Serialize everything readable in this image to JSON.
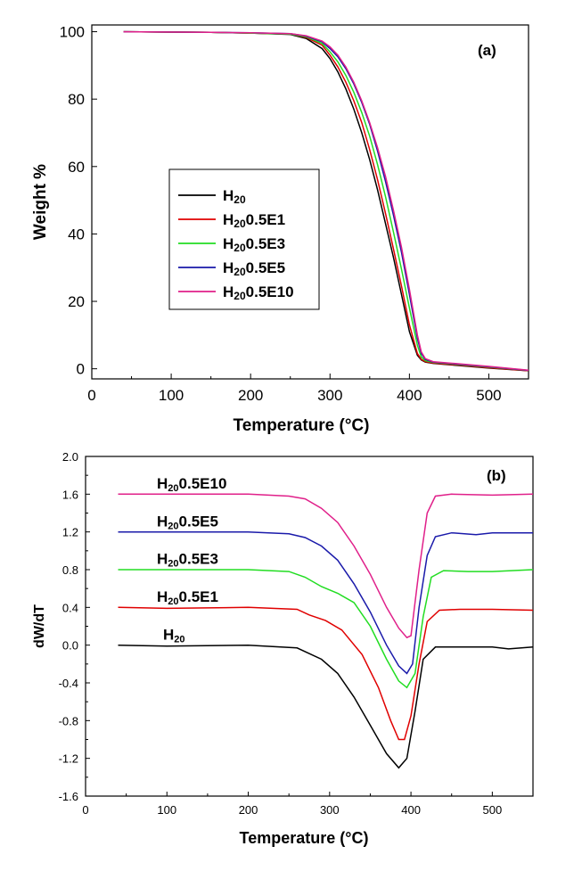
{
  "chart_data": [
    {
      "type": "line",
      "panel_label": "(a)",
      "xlabel": "Temperature (°C)",
      "ylabel": "Weight %",
      "xlim": [
        0,
        550
      ],
      "ylim": [
        -3,
        102
      ],
      "xticks": [
        0,
        100,
        200,
        300,
        400,
        500
      ],
      "yticks": [
        0,
        20,
        40,
        60,
        80,
        100
      ],
      "legend_position": "center-left",
      "grid": false,
      "series": [
        {
          "name": "H20",
          "color": "#000000",
          "x": [
            40,
            150,
            200,
            250,
            270,
            290,
            300,
            310,
            320,
            330,
            340,
            350,
            360,
            370,
            380,
            390,
            400,
            410,
            415,
            420,
            430,
            450,
            500,
            550
          ],
          "y": [
            100,
            99.8,
            99.6,
            99.2,
            98.0,
            95.0,
            92.0,
            88.0,
            83.0,
            77.0,
            70.0,
            62.0,
            53.0,
            43.0,
            33.0,
            22.0,
            11.0,
            4.0,
            2.6,
            2.0,
            1.6,
            1.2,
            0.2,
            -0.6
          ]
        },
        {
          "name": "H200.5E1",
          "color": "#e00000",
          "x": [
            40,
            150,
            200,
            250,
            270,
            290,
            300,
            310,
            320,
            330,
            340,
            350,
            360,
            370,
            380,
            390,
            400,
            410,
            415,
            420,
            430,
            450,
            500,
            550
          ],
          "y": [
            100,
            99.8,
            99.6,
            99.3,
            98.3,
            96.0,
            93.0,
            89.5,
            85.0,
            79.5,
            73.0,
            65.0,
            56.0,
            46.0,
            35.5,
            24.5,
            13.0,
            4.5,
            2.8,
            2.1,
            1.7,
            1.3,
            0.3,
            -0.6
          ]
        },
        {
          "name": "H200.5E3",
          "color": "#22dd22",
          "x": [
            40,
            150,
            200,
            250,
            270,
            290,
            300,
            310,
            320,
            330,
            340,
            350,
            360,
            370,
            380,
            390,
            400,
            410,
            415,
            420,
            430,
            450,
            500,
            550
          ],
          "y": [
            100,
            99.8,
            99.6,
            99.3,
            98.5,
            96.5,
            94.0,
            91.0,
            87.0,
            82.0,
            76.0,
            69.0,
            60.5,
            51.0,
            40.5,
            29.5,
            18.0,
            7.0,
            3.5,
            2.4,
            1.9,
            1.5,
            0.5,
            -0.5
          ]
        },
        {
          "name": "H200.5E5",
          "color": "#1a1aaa",
          "x": [
            40,
            150,
            200,
            250,
            270,
            290,
            300,
            310,
            320,
            330,
            340,
            350,
            360,
            370,
            380,
            390,
            400,
            410,
            415,
            420,
            430,
            450,
            500,
            550
          ],
          "y": [
            100,
            99.8,
            99.7,
            99.4,
            98.7,
            97.0,
            95.0,
            92.5,
            89.0,
            84.5,
            79.0,
            72.5,
            64.5,
            55.5,
            45.5,
            34.5,
            22.0,
            9.0,
            4.5,
            2.8,
            2.0,
            1.6,
            0.6,
            -0.5
          ]
        },
        {
          "name": "H200.5E10",
          "color": "#e0208a",
          "x": [
            40,
            150,
            200,
            250,
            270,
            290,
            300,
            310,
            320,
            330,
            340,
            350,
            360,
            370,
            380,
            390,
            400,
            410,
            415,
            420,
            430,
            450,
            500,
            550
          ],
          "y": [
            100,
            99.8,
            99.7,
            99.4,
            98.8,
            97.2,
            95.5,
            93.0,
            89.5,
            85.0,
            79.5,
            73.0,
            65.5,
            57.0,
            47.0,
            36.0,
            23.5,
            10.0,
            5.0,
            3.0,
            2.1,
            1.7,
            0.7,
            -0.4
          ]
        }
      ]
    },
    {
      "type": "line",
      "panel_label": "(b)",
      "xlabel": "Temperature (°C)",
      "ylabel": "dW/dT",
      "xlim": [
        0,
        550
      ],
      "ylim": [
        -1.6,
        2.0
      ],
      "xticks": [
        0,
        100,
        200,
        300,
        400,
        500
      ],
      "yticks": [
        -1.6,
        -1.2,
        -0.8,
        -0.4,
        0.0,
        0.4,
        0.8,
        1.2,
        1.6,
        2.0
      ],
      "ytick_labels": [
        "-1.6",
        "-1.2",
        "-0.8",
        "-0.4",
        "0.0",
        "0.4",
        "0.8",
        "1.2",
        "1.6",
        "2.0"
      ],
      "grid": false,
      "series": [
        {
          "name": "H20",
          "color": "#000000",
          "x": [
            40,
            100,
            200,
            260,
            290,
            310,
            330,
            350,
            370,
            385,
            395,
            405,
            415,
            430,
            450,
            500,
            520,
            550
          ],
          "y": [
            0.0,
            -0.01,
            0.0,
            -0.03,
            -0.15,
            -0.3,
            -0.55,
            -0.85,
            -1.15,
            -1.3,
            -1.2,
            -0.7,
            -0.15,
            -0.02,
            -0.02,
            -0.02,
            -0.04,
            -0.02
          ]
        },
        {
          "name": "H200.5E1",
          "color": "#e00000",
          "x": [
            40,
            100,
            200,
            260,
            275,
            295,
            315,
            340,
            360,
            375,
            385,
            392,
            400,
            410,
            420,
            435,
            460,
            500,
            550
          ],
          "y": [
            0.4,
            0.39,
            0.4,
            0.38,
            0.32,
            0.26,
            0.16,
            -0.1,
            -0.45,
            -0.8,
            -1.0,
            -1.0,
            -0.75,
            -0.2,
            0.25,
            0.37,
            0.38,
            0.38,
            0.37
          ]
        },
        {
          "name": "H200.5E3",
          "color": "#22dd22",
          "x": [
            40,
            100,
            200,
            250,
            270,
            290,
            310,
            330,
            350,
            370,
            385,
            395,
            405,
            415,
            425,
            440,
            470,
            500,
            550
          ],
          "y": [
            0.8,
            0.8,
            0.8,
            0.78,
            0.72,
            0.62,
            0.55,
            0.45,
            0.2,
            -0.15,
            -0.38,
            -0.45,
            -0.3,
            0.3,
            0.72,
            0.79,
            0.78,
            0.78,
            0.8
          ]
        },
        {
          "name": "H200.5E5",
          "color": "#1a1aaa",
          "x": [
            40,
            100,
            200,
            250,
            270,
            290,
            310,
            330,
            350,
            370,
            385,
            395,
            402,
            410,
            420,
            430,
            450,
            480,
            500,
            550
          ],
          "y": [
            1.2,
            1.2,
            1.2,
            1.18,
            1.14,
            1.05,
            0.9,
            0.65,
            0.35,
            0.0,
            -0.22,
            -0.3,
            -0.2,
            0.4,
            0.95,
            1.15,
            1.19,
            1.17,
            1.19,
            1.19
          ]
        },
        {
          "name": "H200.5E10",
          "color": "#e0208a",
          "x": [
            40,
            100,
            200,
            250,
            270,
            290,
            310,
            330,
            350,
            370,
            385,
            395,
            400,
            410,
            420,
            430,
            450,
            500,
            550
          ],
          "y": [
            1.6,
            1.6,
            1.6,
            1.58,
            1.55,
            1.45,
            1.3,
            1.05,
            0.75,
            0.4,
            0.18,
            0.08,
            0.1,
            0.8,
            1.4,
            1.58,
            1.6,
            1.59,
            1.6
          ]
        }
      ],
      "curve_labels": [
        "H200.5E10",
        "H200.5E5",
        "H200.5E3",
        "H200.5E1",
        "H20"
      ]
    }
  ]
}
